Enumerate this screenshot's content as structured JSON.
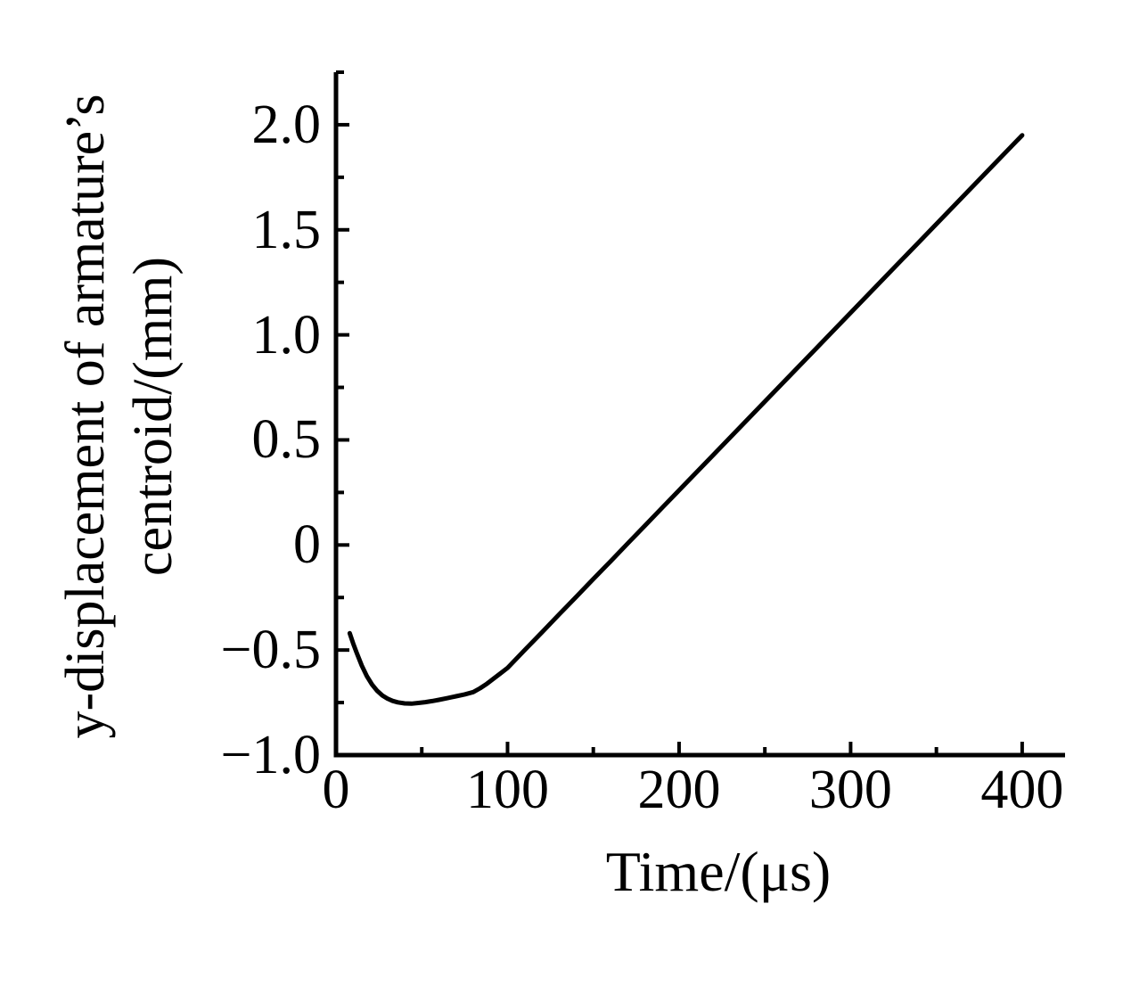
{
  "figure": {
    "background_color": "#ffffff",
    "ink_color": "#000000"
  },
  "chart_data": {
    "type": "line",
    "title": "",
    "xlabel": "Time/(μs)",
    "ylabel_line1": "y-displacement of armature’s",
    "ylabel_line2": "centroid/(mm)",
    "xlim": [
      0,
      425
    ],
    "ylim": [
      -1.0,
      2.25
    ],
    "grid": false,
    "legend": null,
    "x_ticks_major": [
      0,
      100,
      200,
      300,
      400
    ],
    "x_tick_labels": [
      "0",
      "100",
      "200",
      "300",
      "400"
    ],
    "x_ticks_minor": [
      50,
      150,
      250,
      350
    ],
    "y_ticks_major": [
      2.0,
      1.5,
      1.0,
      0.5,
      0,
      -0.5,
      -1.0
    ],
    "y_tick_labels": [
      "2.0",
      "1.5",
      "1.0",
      "0.5",
      "0",
      "−0.5",
      "−1.0"
    ],
    "y_ticks_minor": [
      2.25,
      1.75,
      1.25,
      0.75,
      0.25,
      -0.25,
      -0.75
    ],
    "series": [
      {
        "name": "y-displacement of armature's centroid",
        "color": "#000000",
        "points": [
          [
            8,
            -0.42
          ],
          [
            10,
            -0.468
          ],
          [
            12,
            -0.512
          ],
          [
            15,
            -0.574
          ],
          [
            18,
            -0.624
          ],
          [
            21,
            -0.664
          ],
          [
            24,
            -0.694
          ],
          [
            27,
            -0.716
          ],
          [
            30,
            -0.731
          ],
          [
            33,
            -0.742
          ],
          [
            36,
            -0.749
          ],
          [
            40,
            -0.754
          ],
          [
            44,
            -0.755
          ],
          [
            48,
            -0.752
          ],
          [
            52,
            -0.748
          ],
          [
            56,
            -0.743
          ],
          [
            60,
            -0.737
          ],
          [
            65,
            -0.729
          ],
          [
            70,
            -0.72
          ],
          [
            75,
            -0.711
          ],
          [
            80,
            -0.7
          ],
          [
            84,
            -0.682
          ],
          [
            88,
            -0.66
          ],
          [
            92,
            -0.635
          ],
          [
            96,
            -0.61
          ],
          [
            100,
            -0.585
          ],
          [
            110,
            -0.5
          ],
          [
            120,
            -0.416
          ],
          [
            130,
            -0.331
          ],
          [
            140,
            -0.247
          ],
          [
            150,
            -0.162
          ],
          [
            160,
            -0.078
          ],
          [
            170,
            0.007
          ],
          [
            180,
            0.091
          ],
          [
            190,
            0.176
          ],
          [
            200,
            0.26
          ],
          [
            220,
            0.429
          ],
          [
            240,
            0.598
          ],
          [
            260,
            0.767
          ],
          [
            280,
            0.936
          ],
          [
            300,
            1.105
          ],
          [
            320,
            1.274
          ],
          [
            340,
            1.443
          ],
          [
            360,
            1.612
          ],
          [
            380,
            1.781
          ],
          [
            400,
            1.95
          ]
        ]
      }
    ]
  }
}
